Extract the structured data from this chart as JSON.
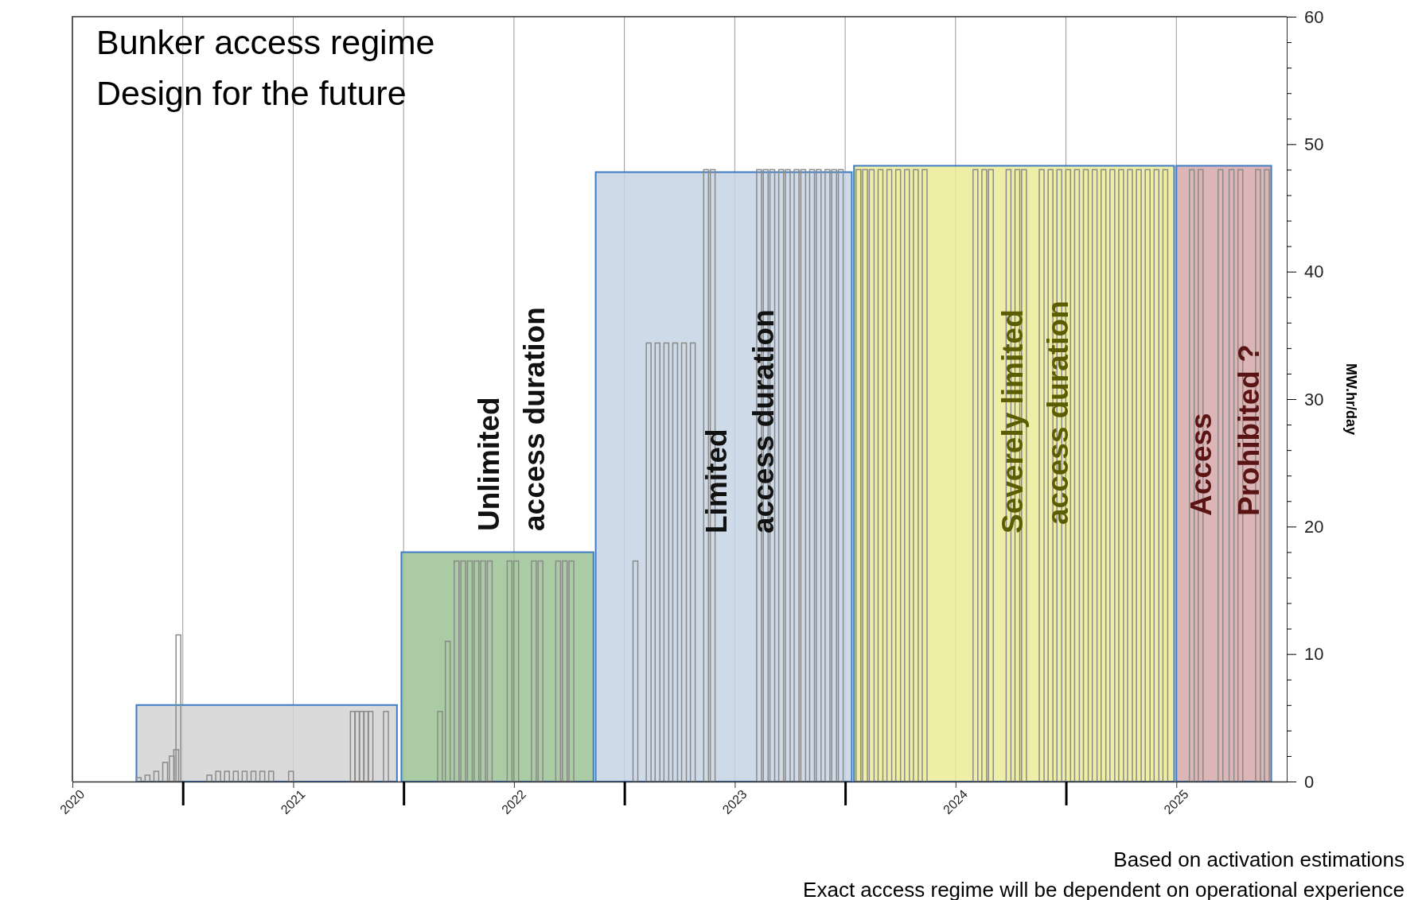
{
  "chart_data": {
    "type": "bar",
    "title": "Bunker access regime",
    "subtitle": "Design for the future",
    "ylabel": "MW.hr/day",
    "xlim": [
      2020,
      2025.5
    ],
    "ylim": [
      0,
      60
    ],
    "xticks": [
      2020,
      {
        "value": 2020.5,
        "label": null
      },
      2021,
      {
        "value": 2021.5,
        "label": null
      },
      2022,
      {
        "value": 2022.5,
        "label": null
      },
      2023,
      {
        "value": 2023.5,
        "label": null
      },
      2024,
      {
        "value": 2024.5,
        "label": null
      },
      2025
    ],
    "yticks": [
      0,
      {
        "value": 2,
        "label": null
      },
      {
        "value": 4,
        "label": null
      },
      {
        "value": 6,
        "label": null
      },
      {
        "value": 8,
        "label": null
      },
      10,
      {
        "value": 12,
        "label": null
      },
      {
        "value": 14,
        "label": null
      },
      {
        "value": 16,
        "label": null
      },
      {
        "value": 18,
        "label": null
      },
      20,
      {
        "value": 22,
        "label": null
      },
      {
        "value": 24,
        "label": null
      },
      {
        "value": 26,
        "label": null
      },
      {
        "value": 28,
        "label": null
      },
      30,
      {
        "value": 32,
        "label": null
      },
      {
        "value": 34,
        "label": null
      },
      {
        "value": 36,
        "label": null
      },
      {
        "value": 38,
        "label": null
      },
      40,
      {
        "value": 42,
        "label": null
      },
      {
        "value": 44,
        "label": null
      },
      {
        "value": 46,
        "label": null
      },
      {
        "value": 48,
        "label": null
      },
      50,
      {
        "value": 52,
        "label": null
      },
      {
        "value": 54,
        "label": null
      },
      {
        "value": 56,
        "label": null
      },
      {
        "value": 58,
        "label": null
      },
      60
    ],
    "grid": "x",
    "series": [
      {
        "type": "area",
        "color": "#d3d3d3",
        "x": [
          2020.29,
          2021.47
        ],
        "values": [
          6,
          6
        ]
      },
      {
        "type": "area",
        "color": "#9bc294",
        "x": [
          2021.49,
          2022.36
        ],
        "values": [
          18,
          18
        ]
      },
      {
        "type": "area",
        "color": "#c6d4e3",
        "x": [
          2022.37,
          2023.53
        ],
        "values": [
          47.8,
          47.8
        ]
      },
      {
        "type": "area",
        "color": "#ebeb97",
        "x": [
          2023.54,
          2024.99
        ],
        "values": [
          48.3,
          48.3
        ]
      },
      {
        "type": "area",
        "color": "#d6a9a9",
        "x": [
          2025.0,
          2025.43
        ],
        "values": [
          48.3,
          48.3
        ]
      },
      {
        "color": "#8a8a8a",
        "x": [
          2020.3,
          2020.34,
          2020.38,
          2020.42,
          2020.45,
          2020.47,
          2020.48,
          2020.62,
          2020.66,
          2020.7,
          2020.74,
          2020.78,
          2020.82,
          2020.86,
          2020.9,
          2020.99,
          2021.27,
          2021.29,
          2021.31,
          2021.33,
          2021.35,
          2021.42,
          2021.665,
          2021.7,
          2021.74,
          2021.77,
          2021.8,
          2021.83,
          2021.86,
          2021.89,
          2021.98,
          2022.01,
          2022.09,
          2022.12,
          2022.2,
          2022.23,
          2022.26,
          2022.55,
          2022.61,
          2022.65,
          2022.69,
          2022.73,
          2022.77,
          2022.81,
          2022.87,
          2022.9,
          2023.11,
          2023.14,
          2023.17,
          2023.21,
          2023.24,
          2023.28,
          2023.31,
          2023.35,
          2023.38,
          2023.42,
          2023.45,
          2023.48,
          2023.56,
          2023.59,
          2023.62,
          2023.66,
          2023.7,
          2023.74,
          2023.78,
          2023.82,
          2023.86,
          2024.09,
          2024.13,
          2024.16,
          2024.24,
          2024.28,
          2024.31,
          2024.39,
          2024.43,
          2024.47,
          2024.51,
          2024.55,
          2024.59,
          2024.63,
          2024.67,
          2024.71,
          2024.75,
          2024.79,
          2024.83,
          2024.87,
          2024.91,
          2024.95,
          2025.07,
          2025.11,
          2025.2,
          2025.25,
          2025.29,
          2025.37,
          2025.41
        ],
        "values": [
          0.3,
          0.5,
          0.8,
          1.5,
          2,
          2.5,
          11.5,
          0.5,
          0.8,
          0.8,
          0.8,
          0.8,
          0.8,
          0.8,
          0.8,
          0.8,
          5.5,
          5.5,
          5.5,
          5.5,
          5.5,
          5.5,
          5.5,
          11,
          17.3,
          17.3,
          17.3,
          17.3,
          17.3,
          17.3,
          17.3,
          17.3,
          17.3,
          17.3,
          17.3,
          17.3,
          17.3,
          17.3,
          34.4,
          34.4,
          34.4,
          34.4,
          34.4,
          34.4,
          48,
          48,
          48,
          48,
          48,
          48,
          48,
          48,
          48,
          48,
          48,
          48,
          48,
          48,
          48,
          48,
          48,
          48,
          48,
          48,
          48,
          48,
          48,
          48,
          48,
          48,
          48,
          48,
          48,
          48,
          48,
          48,
          48,
          48,
          48,
          48,
          48,
          48,
          48,
          48,
          48,
          48,
          48,
          48,
          48,
          48,
          48,
          48,
          48,
          48,
          48
        ]
      }
    ],
    "annotations": [
      "Unlimited",
      "access duration",
      "Limited",
      "access duration",
      "Severely limited",
      "access duration",
      "Access",
      "Prohibited ?",
      "Based on activation estimations",
      "Exact access regime will be dependent on operational experience"
    ]
  }
}
